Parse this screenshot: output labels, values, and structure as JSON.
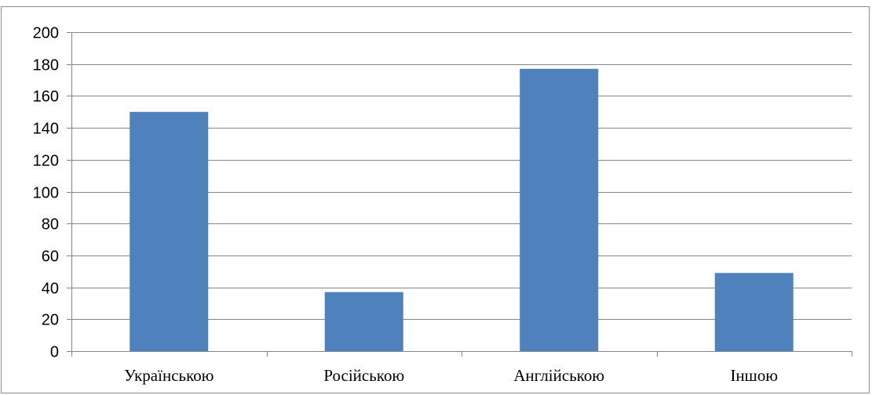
{
  "chart_data": {
    "type": "bar",
    "categories": [
      "Українською",
      "Російською",
      "Англійською",
      "Іншою"
    ],
    "values": [
      150,
      37,
      177,
      49
    ],
    "title": "",
    "xlabel": "",
    "ylabel": "",
    "ylim": [
      0,
      200
    ],
    "yticks": [
      0,
      20,
      40,
      60,
      80,
      100,
      120,
      140,
      160,
      180,
      200
    ],
    "grid": true,
    "legend": "none",
    "bar_color": "#4f81bd",
    "grid_color": "#868686"
  }
}
